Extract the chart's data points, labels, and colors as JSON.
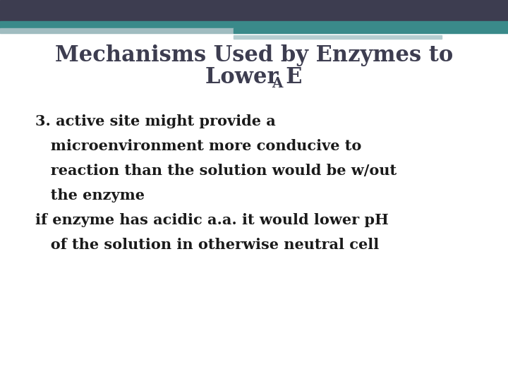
{
  "title_line1": "Mechanisms Used by Enzymes to",
  "title_line2": "Lower E",
  "title_line2_subscript": "A",
  "title_color": "#3d3d50",
  "title_fontsize": 22,
  "body_lines": [
    "3. active site might provide a",
    "   microenvironment more conducive to",
    "   reaction than the solution would be w/out",
    "   the enzyme",
    "if enzyme has acidic a.a. it would lower pH",
    "   of the solution in otherwise neutral cell"
  ],
  "body_color": "#1a1a1a",
  "body_fontsize": 15,
  "bg_color": "#ffffff",
  "header_dark_color": "#3d3d50",
  "header_teal_color": "#3a8a8a",
  "header_light_color": "#a0bcc0",
  "header_light2_color": "#b5cdd0"
}
